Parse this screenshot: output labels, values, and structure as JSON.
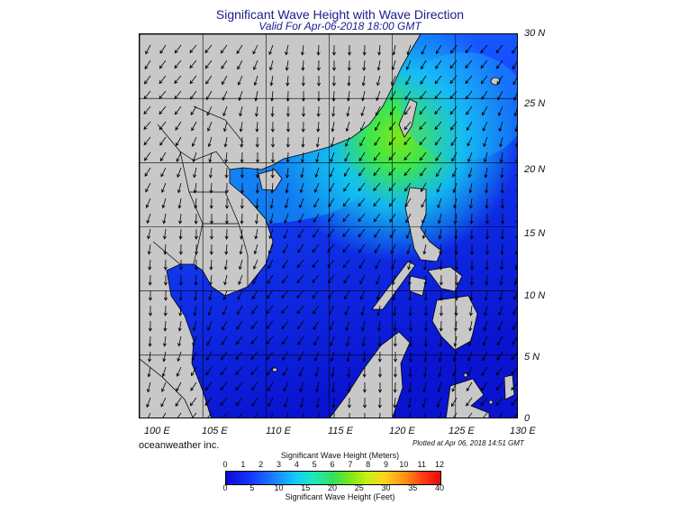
{
  "title": "Significant Wave Height with Wave Direction",
  "subtitle": "Valid For Apr-06-2018 18:00 GMT",
  "lat_labels": [
    "30 N",
    "25 N",
    "20 N",
    "15 N",
    "10 N",
    "5 N",
    "0"
  ],
  "lon_labels": [
    "100 E",
    "105 E",
    "110 E",
    "115 E",
    "120 E",
    "125 E",
    "130 E"
  ],
  "credit": "oceanweather inc.",
  "plotted": "Plotted at Apr 06, 2018 14:51 GMT",
  "legend": {
    "meters_title": "Significant Wave Height (Meters)",
    "feet_title": "Significant Wave Height (Feet)",
    "meters_ticks": [
      "0",
      "1",
      "2",
      "3",
      "4",
      "5",
      "6",
      "7",
      "8",
      "9",
      "10",
      "11",
      "12"
    ],
    "feet_ticks": [
      "0",
      "5",
      "10",
      "15",
      "20",
      "25",
      "30",
      "35",
      "40"
    ]
  },
  "colors": {
    "title": "#1a1a8c",
    "land": "#c8c8c8",
    "deep_blue": "#0a14d8",
    "cyan": "#12d4f0",
    "green": "#3ce650"
  }
}
